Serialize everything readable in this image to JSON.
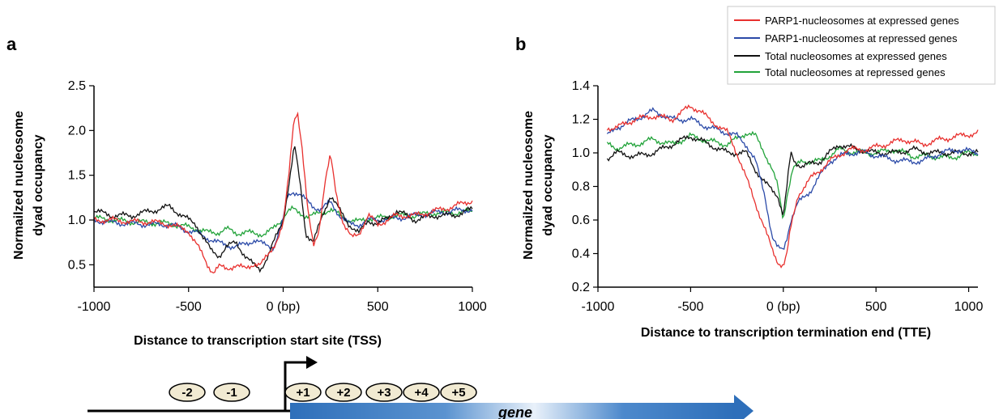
{
  "chart_data": [
    {
      "id": "a",
      "type": "line",
      "panel_label": "a",
      "xlabel": "Distance to transcription start site (TSS)",
      "ylabel_lines": [
        "Normailzed nucleosome",
        "dyad occupancy"
      ],
      "xlim": [
        -1000,
        1000
      ],
      "ylim": [
        0.25,
        2.5
      ],
      "xticks": [
        -1000,
        -500,
        0,
        500,
        1000
      ],
      "xtick_labels": [
        "-1000",
        "-500",
        "0 (bp)",
        "500",
        "1000"
      ],
      "yticks": [
        0.5,
        1.0,
        1.5,
        2.0,
        2.5
      ],
      "ytick_labels": [
        "0.5",
        "1.0",
        "1.5",
        "2.0",
        "2.5"
      ],
      "grid": false,
      "series": [
        {
          "name": "Total nucleosomes at repressed genes",
          "color": "#22a33a",
          "x": [
            -1000,
            -900,
            -800,
            -700,
            -600,
            -500,
            -450,
            -400,
            -350,
            -300,
            -250,
            -200,
            -150,
            -100,
            -50,
            0,
            20,
            50,
            80,
            120,
            160,
            200,
            250,
            300,
            350,
            400,
            450,
            500,
            600,
            700,
            800,
            900,
            1000
          ],
          "y": [
            1.02,
            1.0,
            0.98,
            0.97,
            0.96,
            0.92,
            0.9,
            0.86,
            0.86,
            0.9,
            0.85,
            0.87,
            0.84,
            0.85,
            0.9,
            1.02,
            1.1,
            1.12,
            1.08,
            1.05,
            1.05,
            1.08,
            1.12,
            1.05,
            1.0,
            0.98,
            1.02,
            1.02,
            1.05,
            1.05,
            1.08,
            1.08,
            1.1
          ]
        },
        {
          "name": "PARP1-nucleosomes at repressed genes",
          "color": "#2b4aa8",
          "x": [
            -1000,
            -900,
            -800,
            -700,
            -600,
            -500,
            -450,
            -400,
            -350,
            -300,
            -250,
            -200,
            -150,
            -100,
            -50,
            0,
            20,
            50,
            80,
            120,
            160,
            200,
            250,
            300,
            350,
            400,
            450,
            500,
            600,
            700,
            800,
            900,
            1000
          ],
          "y": [
            1.0,
            0.97,
            0.96,
            0.95,
            0.95,
            0.88,
            0.85,
            0.8,
            0.75,
            0.72,
            0.7,
            0.73,
            0.78,
            0.72,
            0.7,
            1.0,
            1.25,
            1.32,
            1.3,
            1.22,
            1.15,
            1.12,
            1.2,
            1.05,
            0.95,
            0.95,
            1.0,
            1.0,
            1.02,
            1.05,
            1.08,
            1.1,
            1.12
          ]
        },
        {
          "name": "Total nucleosomes at expressed genes",
          "color": "#111111",
          "x": [
            -1000,
            -900,
            -800,
            -700,
            -600,
            -500,
            -460,
            -420,
            -380,
            -340,
            -300,
            -250,
            -200,
            -150,
            -120,
            -80,
            -40,
            0,
            30,
            60,
            90,
            120,
            160,
            200,
            250,
            300,
            350,
            400,
            450,
            500,
            600,
            700,
            800,
            900,
            1000
          ],
          "y": [
            1.1,
            1.05,
            1.05,
            1.1,
            1.15,
            1.0,
            0.95,
            0.8,
            0.65,
            0.6,
            0.7,
            0.75,
            0.6,
            0.48,
            0.45,
            0.6,
            0.8,
            1.0,
            1.4,
            1.83,
            1.4,
            0.85,
            0.75,
            1.0,
            1.28,
            1.1,
            0.95,
            0.85,
            1.0,
            0.95,
            1.1,
            1.0,
            1.05,
            1.05,
            1.12
          ]
        },
        {
          "name": "PARP1-nucleosomes at expressed genes",
          "color": "#e8302e",
          "x": [
            -1000,
            -900,
            -800,
            -700,
            -600,
            -500,
            -450,
            -400,
            -370,
            -340,
            -300,
            -250,
            -200,
            -150,
            -120,
            -80,
            -40,
            0,
            30,
            55,
            75,
            100,
            130,
            160,
            190,
            220,
            250,
            280,
            320,
            360,
            400,
            450,
            500,
            600,
            700,
            800,
            900,
            1000
          ],
          "y": [
            1.0,
            1.0,
            0.98,
            0.98,
            0.95,
            0.88,
            0.7,
            0.5,
            0.42,
            0.48,
            0.45,
            0.5,
            0.45,
            0.52,
            0.5,
            0.6,
            0.75,
            0.95,
            1.5,
            2.1,
            2.23,
            1.8,
            1.1,
            0.72,
            0.9,
            1.4,
            1.72,
            1.3,
            0.95,
            0.8,
            0.85,
            1.05,
            0.95,
            1.05,
            1.05,
            1.1,
            1.15,
            1.22
          ]
        }
      ]
    },
    {
      "id": "b",
      "type": "line",
      "panel_label": "b",
      "xlabel": "Distance to transcription termination end (TTE)",
      "ylabel_lines": [
        "Normailzed nucleosome",
        "dyad occupancy"
      ],
      "xlim": [
        -1000,
        1050
      ],
      "ylim": [
        0.2,
        1.4
      ],
      "xticks": [
        -1000,
        -500,
        0,
        500,
        1000
      ],
      "xtick_labels": [
        "-1000",
        "-500",
        "0 (bp)",
        "500",
        "1000"
      ],
      "yticks": [
        0.2,
        0.4,
        0.6,
        0.8,
        1.0,
        1.2,
        1.4
      ],
      "ytick_labels": [
        "0.2",
        "0.4",
        "0.6",
        "0.8",
        "1.0",
        "1.2",
        "1.4"
      ],
      "grid": false,
      "legend_position": "top-right",
      "series": [
        {
          "name": "Total nucleosomes at repressed genes",
          "color": "#22a33a",
          "x": [
            -950,
            -900,
            -800,
            -700,
            -600,
            -500,
            -400,
            -300,
            -200,
            -150,
            -100,
            -60,
            -30,
            0,
            20,
            50,
            100,
            200,
            300,
            400,
            500,
            600,
            700,
            800,
            900,
            1000,
            1050
          ],
          "y": [
            1.05,
            1.03,
            1.05,
            1.08,
            1.05,
            1.1,
            1.07,
            1.05,
            1.12,
            1.1,
            1.0,
            0.9,
            0.8,
            0.6,
            0.75,
            0.9,
            0.95,
            0.95,
            1.02,
            1.0,
            1.0,
            1.02,
            0.98,
            0.98,
            0.97,
            1.0,
            1.0
          ]
        },
        {
          "name": "Total nucleosomes at expressed genes",
          "color": "#111111",
          "x": [
            -950,
            -900,
            -800,
            -700,
            -600,
            -500,
            -400,
            -300,
            -200,
            -150,
            -100,
            -60,
            -30,
            0,
            20,
            40,
            60,
            100,
            200,
            300,
            400,
            500,
            600,
            700,
            800,
            900,
            1000,
            1050
          ],
          "y": [
            0.97,
            1.0,
            0.98,
            1.0,
            1.05,
            1.1,
            1.05,
            1.0,
            1.0,
            0.9,
            0.82,
            0.78,
            0.75,
            0.62,
            0.8,
            1.0,
            0.95,
            0.92,
            0.95,
            1.05,
            1.02,
            1.0,
            1.0,
            1.02,
            1.0,
            1.0,
            1.0,
            1.0
          ]
        },
        {
          "name": "PARP1-nucleosomes at repressed genes",
          "color": "#2b4aa8",
          "x": [
            -950,
            -900,
            -800,
            -700,
            -600,
            -500,
            -400,
            -300,
            -250,
            -200,
            -150,
            -100,
            -60,
            -30,
            0,
            20,
            40,
            80,
            150,
            250,
            350,
            450,
            550,
            650,
            750,
            850,
            950,
            1050
          ],
          "y": [
            1.1,
            1.15,
            1.2,
            1.25,
            1.2,
            1.2,
            1.15,
            1.12,
            1.1,
            1.05,
            0.95,
            0.75,
            0.5,
            0.43,
            0.42,
            0.5,
            0.6,
            0.7,
            0.78,
            0.95,
            1.0,
            1.0,
            0.97,
            0.95,
            0.95,
            1.0,
            1.02,
            1.0
          ]
        },
        {
          "name": "PARP1-nucleosomes at expressed genes",
          "color": "#e8302e",
          "x": [
            -950,
            -900,
            -800,
            -700,
            -600,
            -500,
            -450,
            -400,
            -300,
            -250,
            -200,
            -150,
            -100,
            -60,
            -30,
            0,
            20,
            40,
            80,
            150,
            250,
            350,
            450,
            550,
            650,
            750,
            850,
            950,
            1050
          ],
          "y": [
            1.15,
            1.15,
            1.2,
            1.22,
            1.2,
            1.28,
            1.25,
            1.2,
            1.12,
            1.0,
            0.85,
            0.7,
            0.55,
            0.42,
            0.35,
            0.33,
            0.4,
            0.55,
            0.75,
            0.85,
            0.95,
            1.02,
            1.02,
            1.05,
            1.08,
            1.05,
            1.08,
            1.1,
            1.12
          ]
        }
      ]
    }
  ],
  "legend": {
    "entries": [
      {
        "label": "PARP1-nucleosomes at expressed genes",
        "color": "#e8302e"
      },
      {
        "label": "PARP1-nucleosomes at repressed genes",
        "color": "#2b4aa8"
      },
      {
        "label": "Total nucleosomes at expressed genes",
        "color": "#111111"
      },
      {
        "label": "Total nucleosomes at repressed genes",
        "color": "#22a33a"
      }
    ]
  },
  "diagram": {
    "nucleosomes": [
      "-2",
      "-1",
      "+1",
      "+2",
      "+3",
      "+4",
      "+5"
    ],
    "gene_label": "gene",
    "gene_color": "#2e6fba"
  }
}
